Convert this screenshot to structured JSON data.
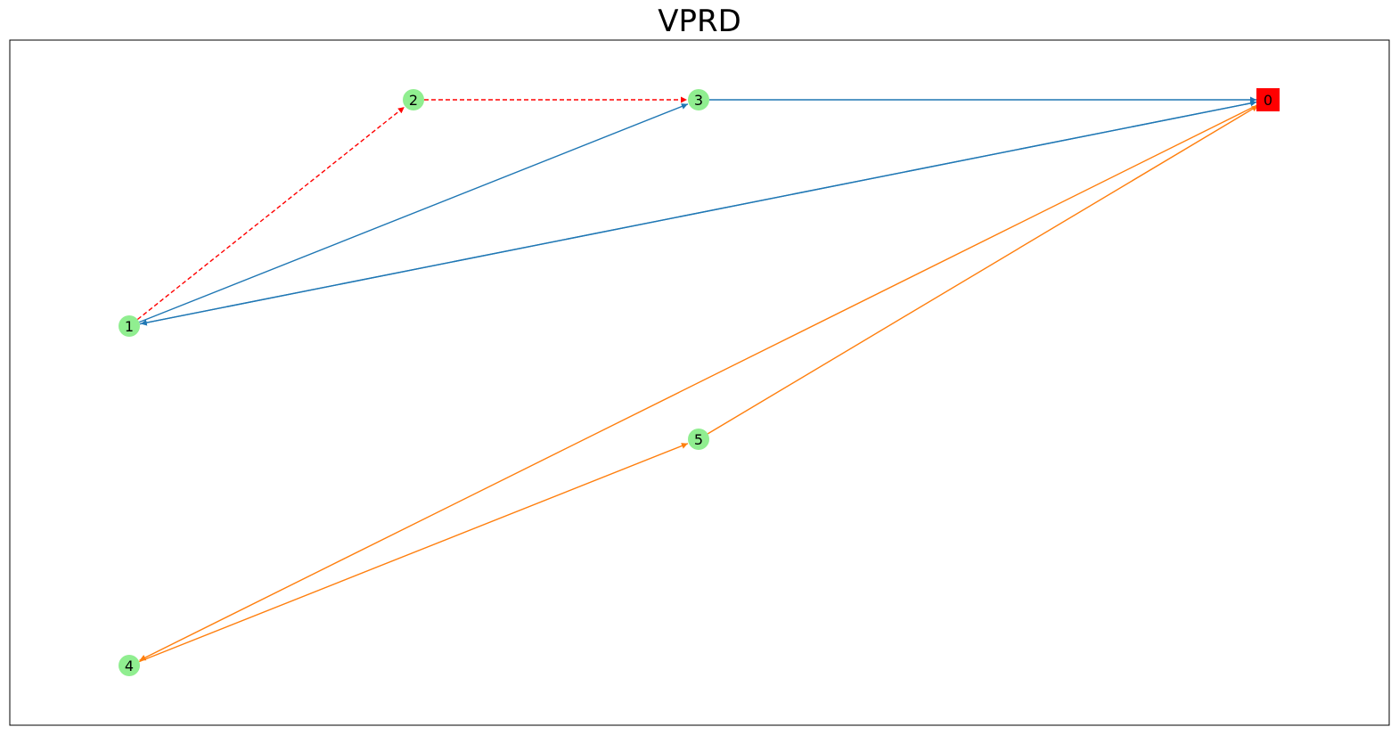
{
  "title": "VPRD",
  "colors": {
    "route_blue": "#1f77b4",
    "route_orange": "#ff7f0e",
    "route_red_dashed": "#ff0000",
    "node_fill": "#90ee90",
    "depot_fill": "#ff0000"
  },
  "nodes": [
    {
      "id": "0",
      "label": "0",
      "shape": "square",
      "role": "depot"
    },
    {
      "id": "1",
      "label": "1",
      "shape": "circle",
      "role": "customer"
    },
    {
      "id": "2",
      "label": "2",
      "shape": "circle",
      "role": "customer"
    },
    {
      "id": "3",
      "label": "3",
      "shape": "circle",
      "role": "customer"
    },
    {
      "id": "4",
      "label": "4",
      "shape": "circle",
      "role": "customer"
    },
    {
      "id": "5",
      "label": "5",
      "shape": "circle",
      "role": "customer"
    }
  ],
  "edges": [
    {
      "from": "1",
      "to": "2",
      "color": "route_red_dashed",
      "style": "dashed"
    },
    {
      "from": "2",
      "to": "3",
      "color": "route_red_dashed",
      "style": "dashed"
    },
    {
      "from": "1",
      "to": "3",
      "color": "route_blue",
      "style": "solid"
    },
    {
      "from": "3",
      "to": "0",
      "color": "route_blue",
      "style": "solid"
    },
    {
      "from": "1",
      "to": "0",
      "color": "route_blue",
      "style": "solid"
    },
    {
      "from": "0",
      "to": "1",
      "color": "route_blue",
      "style": "solid"
    },
    {
      "from": "4",
      "to": "5",
      "color": "route_orange",
      "style": "solid"
    },
    {
      "from": "5",
      "to": "0",
      "color": "route_orange",
      "style": "solid"
    },
    {
      "from": "0",
      "to": "4",
      "color": "route_orange",
      "style": "solid"
    }
  ]
}
